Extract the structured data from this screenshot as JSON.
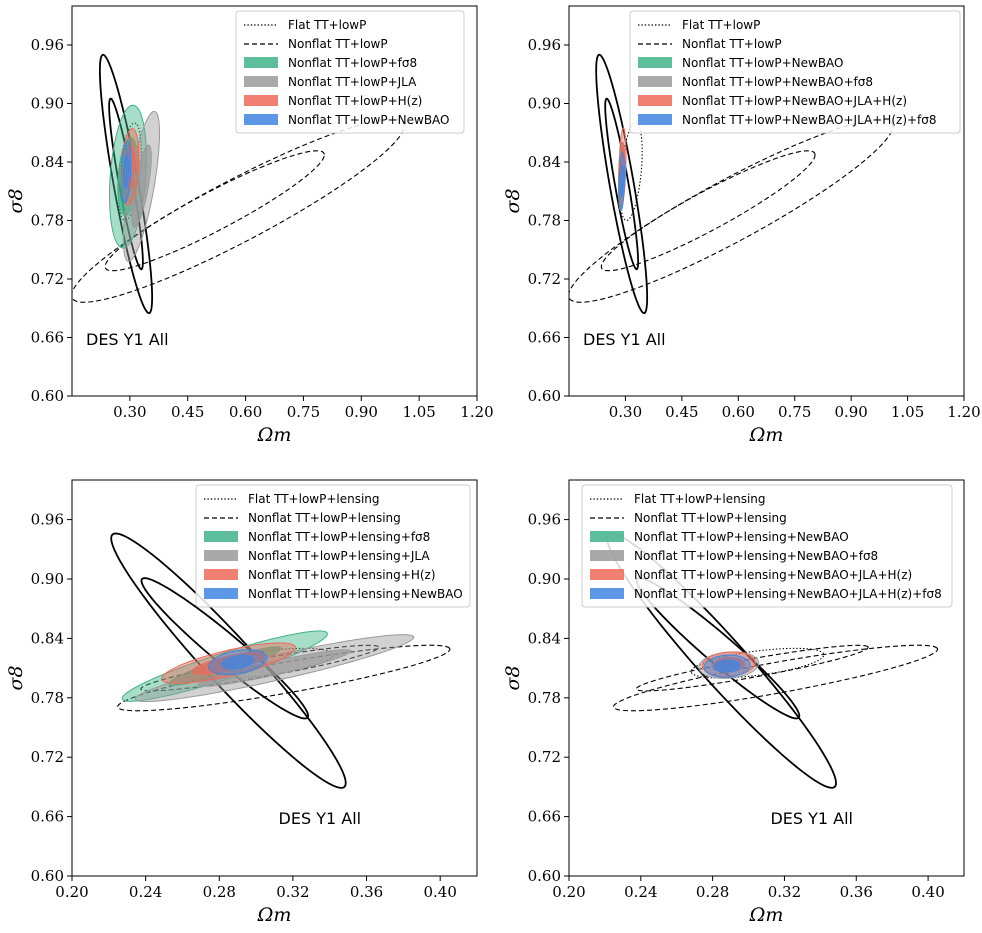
{
  "colors": {
    "green": "#3fb38a",
    "gray": "#9a9a9a",
    "red": "#ee6a5a",
    "blue": "#3f86e0",
    "black": "#000000"
  },
  "chart_data": [
    {
      "type": "contour",
      "xlabel": "Ωm",
      "ylabel": "σ8",
      "xlim": [
        0.15,
        1.2
      ],
      "ylim": [
        0.6,
        1.0
      ],
      "xticks": [
        "0.30",
        "0.45",
        "0.60",
        "0.75",
        "0.90",
        "1.05",
        "1.20"
      ],
      "yticks": [
        "0.60",
        "0.66",
        "0.72",
        "0.78",
        "0.84",
        "0.90",
        "0.96"
      ],
      "annotation": "DES Y1 All",
      "legend": [
        {
          "label": "Flat TT+lowP",
          "style": "dotted"
        },
        {
          "label": "Nonflat TT+lowP",
          "style": "dashed"
        },
        {
          "label": "Nonflat TT+lowP+fσ8",
          "color": "green"
        },
        {
          "label": "Nonflat TT+lowP+JLA",
          "color": "gray"
        },
        {
          "label": "Nonflat TT+lowP+H(z)",
          "color": "red"
        },
        {
          "label": "Nonflat TT+lowP+NewBAO",
          "color": "blue"
        }
      ],
      "series": [
        {
          "style": "solid",
          "kind": "des",
          "outer": [
            [
              0.23,
              0.95
            ],
            [
              0.35,
              0.685
            ]
          ],
          "w1": 0.032,
          "inner": [
            [
              0.25,
              0.905
            ],
            [
              0.33,
              0.73
            ]
          ],
          "w2": 0.018
        },
        {
          "style": "dashed",
          "kind": "ellipse",
          "c": [
            0.58,
            0.79
          ],
          "a": 0.44,
          "b": 0.035,
          "r": 0.2
        },
        {
          "style": "dashed",
          "kind": "ellipse",
          "c": [
            0.52,
            0.79
          ],
          "a": 0.29,
          "b": 0.022,
          "r": 0.2
        },
        {
          "style": "dotted",
          "kind": "ellipse",
          "c": [
            0.3,
            0.83
          ],
          "a": 0.052,
          "b": 0.026,
          "r": 1.25
        },
        {
          "fill": "green",
          "kind": "ellipse",
          "c": [
            0.295,
            0.825
          ],
          "a": 0.075,
          "b": 0.045,
          "r": 1.3
        },
        {
          "fill": "gray",
          "kind": "ellipse",
          "c": [
            0.33,
            0.815
          ],
          "a": 0.085,
          "b": 0.03,
          "r": 1.1
        },
        {
          "fill": "red",
          "kind": "ellipse",
          "c": [
            0.3,
            0.835
          ],
          "a": 0.04,
          "b": 0.022,
          "r": 1.35
        },
        {
          "fill": "blue",
          "kind": "ellipse",
          "c": [
            0.29,
            0.83
          ],
          "a": 0.032,
          "b": 0.012,
          "r": 1.45
        }
      ]
    },
    {
      "type": "contour",
      "xlabel": "Ωm",
      "ylabel": "σ8",
      "xlim": [
        0.15,
        1.2
      ],
      "ylim": [
        0.6,
        1.0
      ],
      "xticks": [
        "0.30",
        "0.45",
        "0.60",
        "0.75",
        "0.90",
        "1.05",
        "1.20"
      ],
      "yticks": [
        "0.60",
        "0.66",
        "0.72",
        "0.78",
        "0.84",
        "0.90",
        "0.96"
      ],
      "annotation": "DES Y1 All",
      "legend": [
        {
          "label": "Flat TT+lowP",
          "style": "dotted"
        },
        {
          "label": "Nonflat TT+lowP",
          "style": "dashed"
        },
        {
          "label": "Nonflat TT+lowP+NewBAO",
          "color": "green"
        },
        {
          "label": "Nonflat TT+lowP+NewBAO+fσ8",
          "color": "gray"
        },
        {
          "label": "Nonflat TT+lowP+NewBAO+JLA+H(z)",
          "color": "red"
        },
        {
          "label": "Nonflat TT+lowP+NewBAO+JLA+H(z)+fσ8",
          "color": "blue"
        }
      ],
      "series": [
        {
          "style": "solid",
          "kind": "des",
          "outer": [
            [
              0.23,
              0.95
            ],
            [
              0.35,
              0.685
            ]
          ],
          "w1": 0.032,
          "inner": [
            [
              0.25,
              0.905
            ],
            [
              0.33,
              0.73
            ]
          ],
          "w2": 0.018
        },
        {
          "style": "dashed",
          "kind": "ellipse",
          "c": [
            0.58,
            0.79
          ],
          "a": 0.44,
          "b": 0.035,
          "r": 0.2
        },
        {
          "style": "dashed",
          "kind": "ellipse",
          "c": [
            0.52,
            0.79
          ],
          "a": 0.29,
          "b": 0.022,
          "r": 0.2
        },
        {
          "style": "dotted",
          "kind": "ellipse",
          "c": [
            0.315,
            0.83
          ],
          "a": 0.052,
          "b": 0.026,
          "r": 1.25
        },
        {
          "fill": "green",
          "kind": "ellipse",
          "c": [
            0.29,
            0.825
          ],
          "a": 0.035,
          "b": 0.008,
          "r": 1.5
        },
        {
          "fill": "gray",
          "kind": "ellipse",
          "c": [
            0.29,
            0.825
          ],
          "a": 0.035,
          "b": 0.008,
          "r": 1.5
        },
        {
          "fill": "red",
          "kind": "ellipse",
          "c": [
            0.292,
            0.835
          ],
          "a": 0.04,
          "b": 0.009,
          "r": 1.5
        },
        {
          "fill": "blue",
          "kind": "ellipse",
          "c": [
            0.29,
            0.82
          ],
          "a": 0.03,
          "b": 0.007,
          "r": 1.5
        }
      ]
    },
    {
      "type": "contour",
      "xlabel": "Ωm",
      "ylabel": "σ8",
      "xlim": [
        0.2,
        0.42
      ],
      "ylim": [
        0.6,
        1.0
      ],
      "xticks": [
        "0.20",
        "0.24",
        "0.28",
        "0.32",
        "0.36",
        "0.40"
      ],
      "yticks": [
        "0.60",
        "0.66",
        "0.72",
        "0.78",
        "0.84",
        "0.90",
        "0.96"
      ],
      "annotation": "DES Y1 All",
      "legend": [
        {
          "label": "Flat TT+lowP+lensing",
          "style": "dotted"
        },
        {
          "label": "Nonflat TT+lowP+lensing",
          "style": "dashed"
        },
        {
          "label": "Nonflat TT+lowP+lensing+fσ8",
          "color": "green"
        },
        {
          "label": "Nonflat TT+lowP+lensing+JLA",
          "color": "gray"
        },
        {
          "label": "Nonflat TT+lowP+lensing+H(z)",
          "color": "red"
        },
        {
          "label": "Nonflat TT+lowP+lensing+NewBAO",
          "color": "blue"
        }
      ],
      "series": [
        {
          "style": "solid",
          "kind": "des",
          "outer": [
            [
              0.222,
              0.945
            ],
            [
              0.348,
              0.69
            ]
          ],
          "w1": 0.013,
          "inner": [
            [
              0.238,
              0.9
            ],
            [
              0.328,
              0.76
            ]
          ],
          "w2": 0.008
        },
        {
          "style": "dashed",
          "kind": "ellipse",
          "c": [
            0.315,
            0.8
          ],
          "a": 0.095,
          "b": 0.015,
          "r": 0.32
        },
        {
          "style": "dashed",
          "kind": "ellipse",
          "c": [
            0.302,
            0.81
          ],
          "a": 0.068,
          "b": 0.009,
          "r": 0.32
        },
        {
          "style": "dotted",
          "kind": "ellipse",
          "c": [
            0.305,
            0.815
          ],
          "a": 0.038,
          "b": 0.012,
          "r": 0.25
        },
        {
          "fill": "green",
          "kind": "ellipse",
          "c": [
            0.283,
            0.812
          ],
          "a": 0.065,
          "b": 0.012,
          "r": 0.55
        },
        {
          "fill": "gray",
          "kind": "ellipse",
          "c": [
            0.31,
            0.81
          ],
          "a": 0.082,
          "b": 0.012,
          "r": 0.4
        },
        {
          "fill": "red",
          "kind": "ellipse",
          "c": [
            0.285,
            0.815
          ],
          "a": 0.04,
          "b": 0.012,
          "r": 0.45
        },
        {
          "fill": "blue",
          "kind": "ellipse",
          "c": [
            0.29,
            0.816
          ],
          "a": 0.017,
          "b": 0.011,
          "r": 0.5
        }
      ]
    },
    {
      "type": "contour",
      "xlabel": "Ωm",
      "ylabel": "σ8",
      "xlim": [
        0.2,
        0.42
      ],
      "ylim": [
        0.6,
        1.0
      ],
      "xticks": [
        "0.20",
        "0.24",
        "0.28",
        "0.32",
        "0.36",
        "0.40"
      ],
      "yticks": [
        "0.60",
        "0.66",
        "0.72",
        "0.78",
        "0.84",
        "0.90",
        "0.96"
      ],
      "annotation": "DES Y1 All",
      "legend": [
        {
          "label": "Flat TT+lowP+lensing",
          "style": "dotted"
        },
        {
          "label": "Nonflat TT+lowP+lensing",
          "style": "dashed"
        },
        {
          "label": "Nonflat TT+lowP+lensing+NewBAO",
          "color": "green"
        },
        {
          "label": "Nonflat TT+lowP+lensing+NewBAO+fσ8",
          "color": "gray"
        },
        {
          "label": "Nonflat TT+lowP+lensing+NewBAO+JLA+H(z)",
          "color": "red"
        },
        {
          "label": "Nonflat TT+lowP+lensing+NewBAO+JLA+H(z)+fσ8",
          "color": "blue"
        }
      ],
      "series": [
        {
          "style": "solid",
          "kind": "des",
          "outer": [
            [
              0.222,
              0.945
            ],
            [
              0.348,
              0.69
            ]
          ],
          "w1": 0.013,
          "inner": [
            [
              0.238,
              0.9
            ],
            [
              0.328,
              0.76
            ]
          ],
          "w2": 0.008
        },
        {
          "style": "dashed",
          "kind": "ellipse",
          "c": [
            0.315,
            0.8
          ],
          "a": 0.095,
          "b": 0.015,
          "r": 0.32
        },
        {
          "style": "dashed",
          "kind": "ellipse",
          "c": [
            0.302,
            0.81
          ],
          "a": 0.068,
          "b": 0.009,
          "r": 0.32
        },
        {
          "style": "dotted",
          "kind": "ellipse",
          "c": [
            0.305,
            0.815
          ],
          "a": 0.038,
          "b": 0.012,
          "r": 0.25
        },
        {
          "fill": "gray",
          "kind": "ellipse",
          "c": [
            0.289,
            0.813
          ],
          "a": 0.017,
          "b": 0.013,
          "r": 0.3
        },
        {
          "fill": "red",
          "kind": "ellipse",
          "c": [
            0.289,
            0.814
          ],
          "a": 0.015,
          "b": 0.012,
          "r": 0.3
        },
        {
          "fill": "blue",
          "kind": "ellipse",
          "c": [
            0.288,
            0.812
          ],
          "a": 0.013,
          "b": 0.011,
          "r": 0.3
        }
      ]
    }
  ]
}
